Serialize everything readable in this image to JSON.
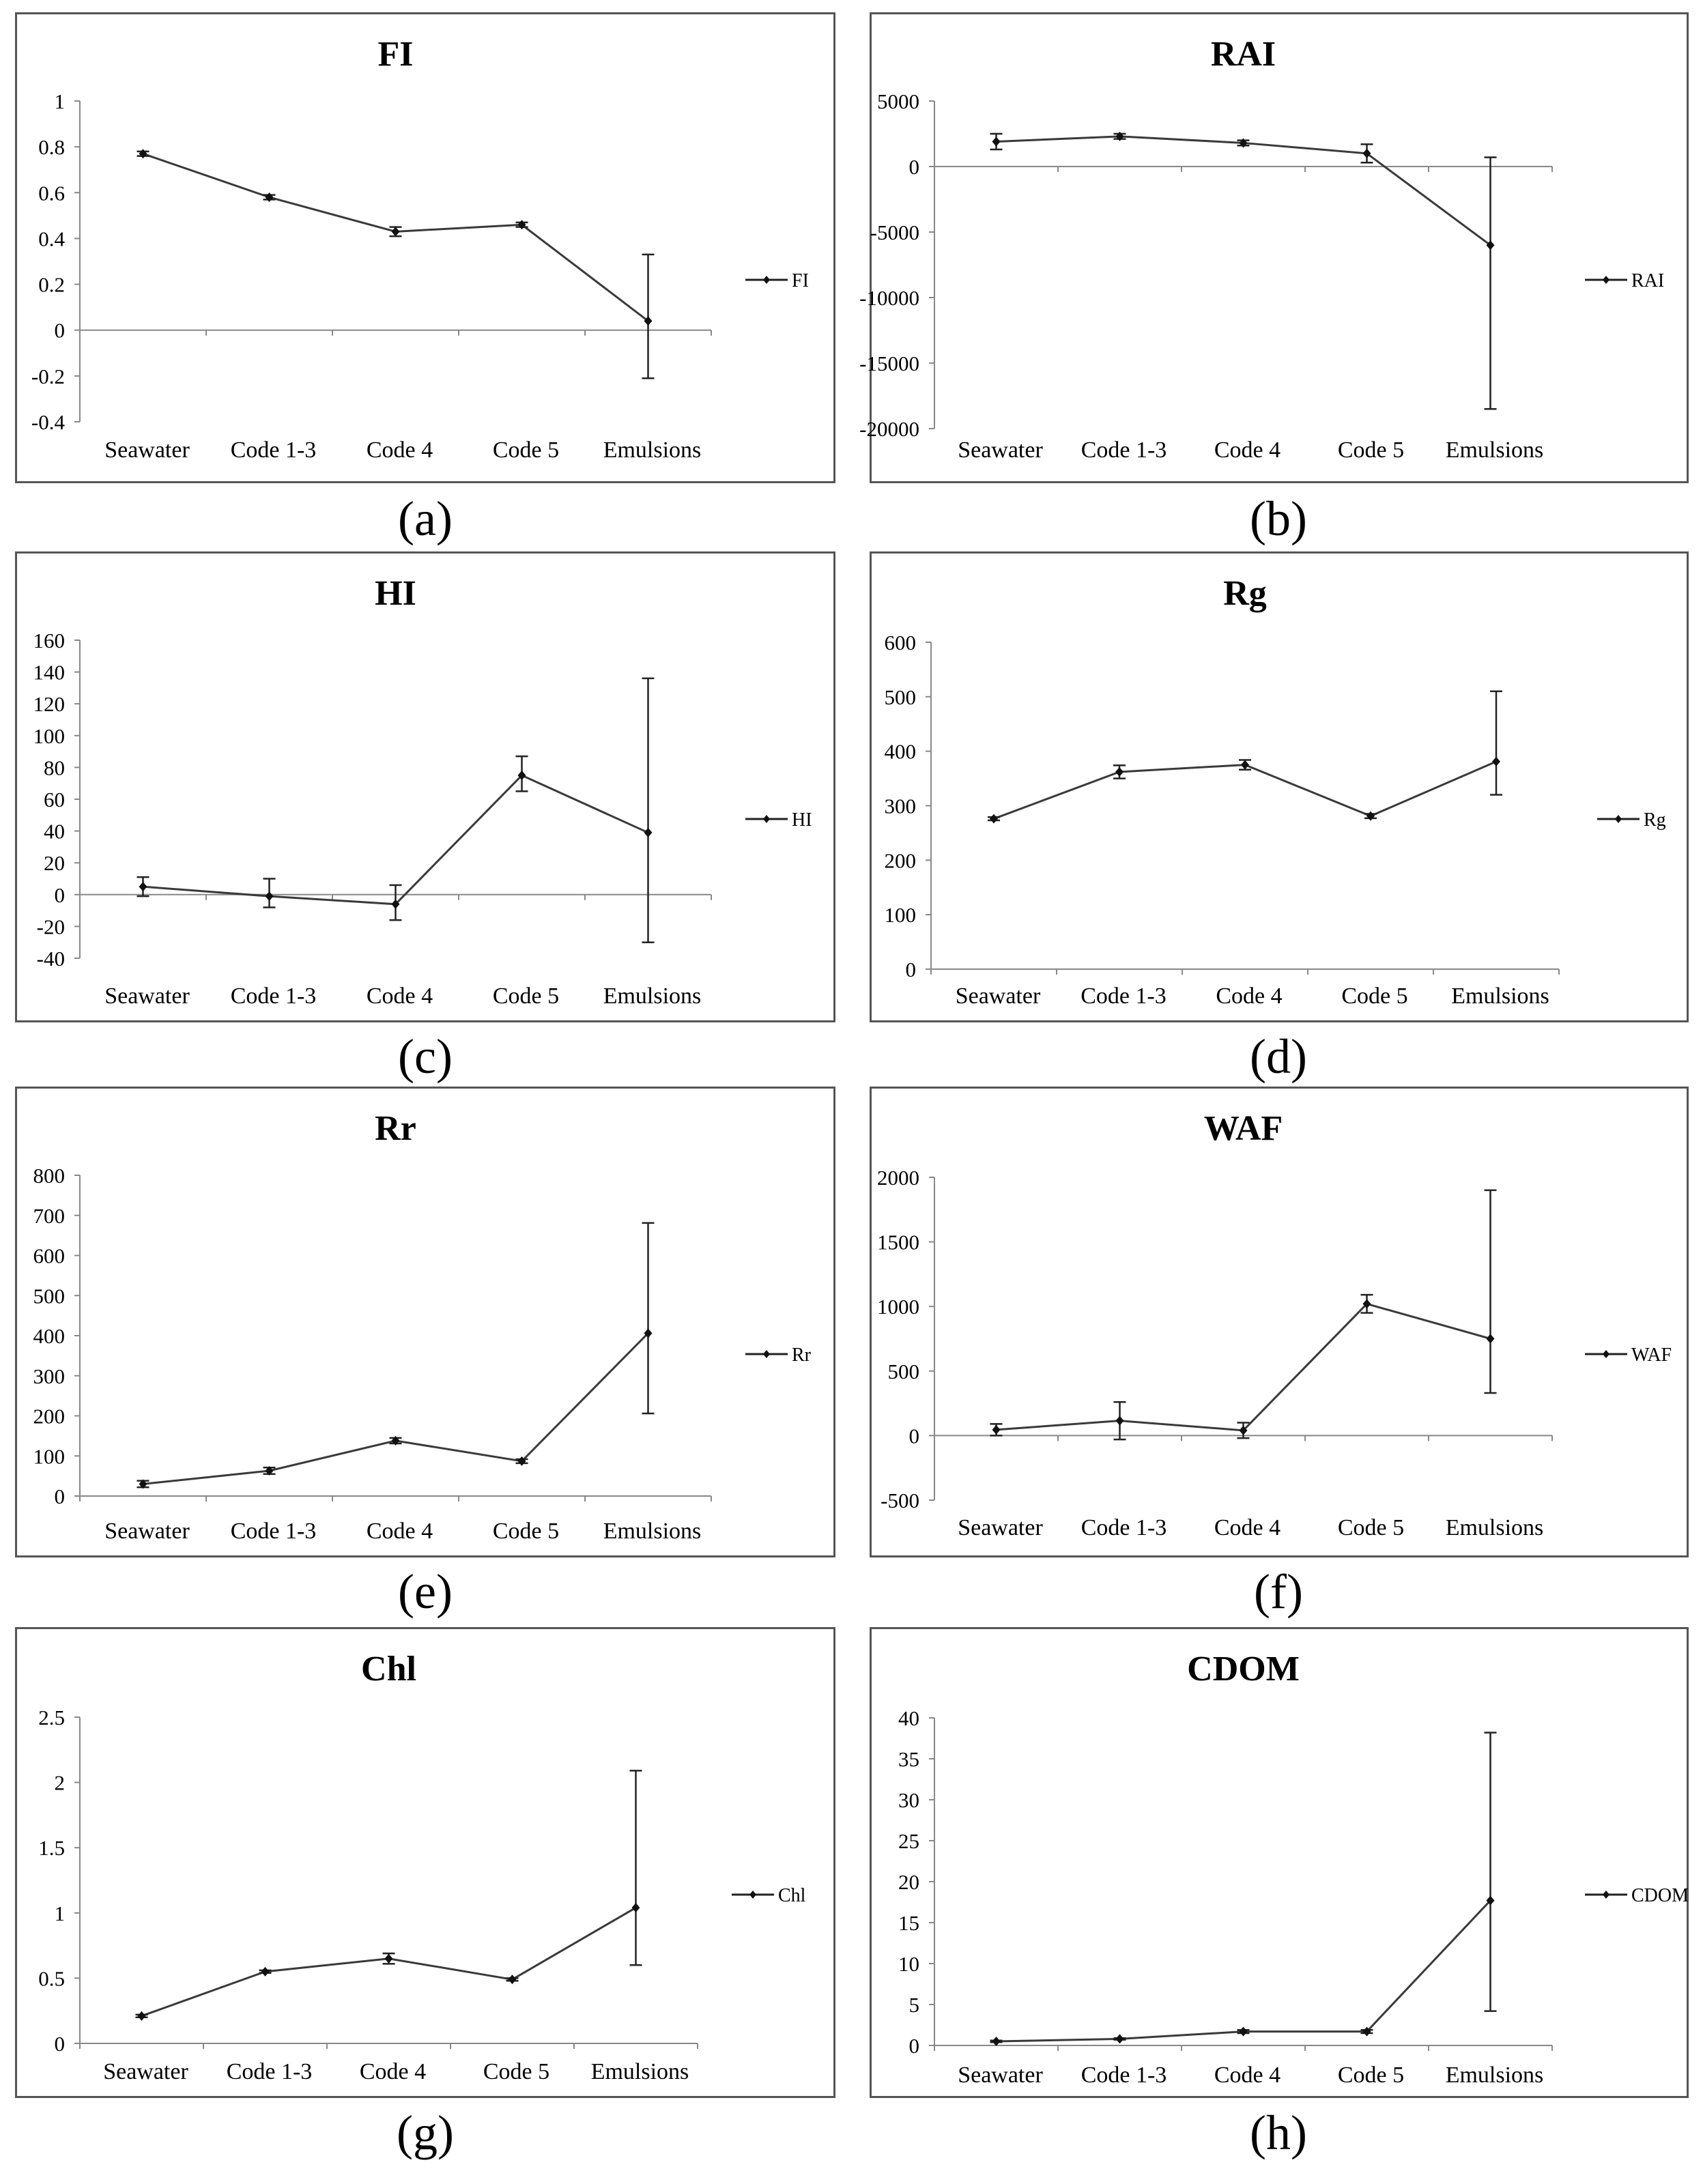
{
  "figure": {
    "captions": [
      "(a)",
      "(b)",
      "(c)",
      "(d)",
      "(e)",
      "(f)",
      "(g)",
      "(h)"
    ]
  },
  "chart_data": [
    {
      "type": "line",
      "title": "FI",
      "categories": [
        "Seawater",
        "Code 1-3",
        "Code 4",
        "Code 5",
        "Emulsions"
      ],
      "ylim": [
        -0.4,
        1
      ],
      "yticks": [
        -0.4,
        -0.2,
        0,
        0.2,
        0.4,
        0.6,
        0.8,
        1
      ],
      "ytick_labels": [
        "-0.4",
        "-0.2",
        "0",
        "0.2",
        "0.4",
        "0.6",
        "0.8",
        "1"
      ],
      "series": [
        {
          "name": "FI",
          "values": [
            0.77,
            0.58,
            0.43,
            0.46,
            0.04
          ],
          "err_low": [
            0.76,
            0.57,
            0.41,
            0.45,
            -0.21
          ],
          "err_high": [
            0.78,
            0.59,
            0.45,
            0.47,
            0.33
          ]
        }
      ],
      "legend": "right",
      "caption": "(a)"
    },
    {
      "type": "line",
      "title": "RAI",
      "categories": [
        "Seawater",
        "Code 1-3",
        "Code 4",
        "Code 5",
        "Emulsions"
      ],
      "ylim": [
        -20000,
        5000
      ],
      "yticks": [
        -20000,
        -15000,
        -10000,
        -5000,
        0,
        5000
      ],
      "ytick_labels": [
        "-20000",
        "-15000",
        "-10000",
        "-5000",
        "0",
        "5000"
      ],
      "series": [
        {
          "name": "RAI",
          "values": [
            1900,
            2300,
            1800,
            1000,
            -6000
          ],
          "err_low": [
            1300,
            2100,
            1600,
            300,
            -18500
          ],
          "err_high": [
            2500,
            2500,
            2000,
            1700,
            700
          ]
        }
      ],
      "legend": "right",
      "caption": "(b)"
    },
    {
      "type": "line",
      "title": "HI",
      "categories": [
        "Seawater",
        "Code 1-3",
        "Code 4",
        "Code 5",
        "Emulsions"
      ],
      "ylim": [
        -40,
        160
      ],
      "yticks": [
        -40,
        -20,
        0,
        20,
        40,
        60,
        80,
        100,
        120,
        140,
        160
      ],
      "ytick_labels": [
        "-40",
        "-20",
        "0",
        "20",
        "40",
        "60",
        "80",
        "100",
        "120",
        "140",
        "160"
      ],
      "series": [
        {
          "name": "HI",
          "values": [
            5,
            -1,
            -6,
            75,
            39
          ],
          "err_low": [
            -1,
            -8,
            -16,
            65,
            -30
          ],
          "err_high": [
            11,
            10,
            6,
            87,
            136
          ]
        }
      ],
      "legend": "right",
      "caption": "(c)"
    },
    {
      "type": "line",
      "title": "Rg",
      "categories": [
        "Seawater",
        "Code 1-3",
        "Code 4",
        "Code 5",
        "Emulsions"
      ],
      "ylim": [
        0,
        600
      ],
      "yticks": [
        0,
        100,
        200,
        300,
        400,
        500,
        600
      ],
      "ytick_labels": [
        "0",
        "100",
        "200",
        "300",
        "400",
        "500",
        "600"
      ],
      "series": [
        {
          "name": "Rg",
          "values": [
            276,
            362,
            375,
            281,
            381
          ],
          "err_low": [
            273,
            350,
            366,
            277,
            320
          ],
          "err_high": [
            279,
            374,
            384,
            285,
            510
          ]
        }
      ],
      "legend": "right",
      "caption": "(d)"
    },
    {
      "type": "line",
      "title": "Rr",
      "categories": [
        "Seawater",
        "Code 1-3",
        "Code 4",
        "Code 5",
        "Emulsions"
      ],
      "ylim": [
        0,
        800
      ],
      "yticks": [
        0,
        100,
        200,
        300,
        400,
        500,
        600,
        700,
        800
      ],
      "ytick_labels": [
        "0",
        "100",
        "200",
        "300",
        "400",
        "500",
        "600",
        "700",
        "800"
      ],
      "series": [
        {
          "name": "Rr",
          "values": [
            30,
            63,
            138,
            87,
            406
          ],
          "err_low": [
            22,
            55,
            131,
            82,
            206
          ],
          "err_high": [
            38,
            71,
            145,
            92,
            681
          ]
        }
      ],
      "legend": "right",
      "caption": "(e)"
    },
    {
      "type": "line",
      "title": "WAF",
      "categories": [
        "Seawater",
        "Code 1-3",
        "Code 4",
        "Code 5",
        "Emulsions"
      ],
      "ylim": [
        -500,
        2000
      ],
      "yticks": [
        -500,
        0,
        500,
        1000,
        1500,
        2000
      ],
      "ytick_labels": [
        "-500",
        "0",
        "500",
        "1000",
        "1500",
        "2000"
      ],
      "series": [
        {
          "name": "WAF",
          "values": [
            45,
            115,
            40,
            1020,
            750
          ],
          "err_low": [
            0,
            -30,
            -20,
            950,
            330
          ],
          "err_high": [
            90,
            260,
            100,
            1090,
            1900
          ]
        }
      ],
      "legend": "right",
      "caption": "(f)"
    },
    {
      "type": "line",
      "title": "Chl",
      "categories": [
        "Seawater",
        "Code 1-3",
        "Code 4",
        "Code 5",
        "Emulsions"
      ],
      "ylim": [
        0,
        2.5
      ],
      "yticks": [
        0,
        0.5,
        1,
        1.5,
        2,
        2.5
      ],
      "ytick_labels": [
        "0",
        "0.5",
        "1",
        "1.5",
        "2",
        "2.5"
      ],
      "series": [
        {
          "name": "Chl",
          "values": [
            0.21,
            0.55,
            0.65,
            0.49,
            1.04
          ],
          "err_low": [
            0.2,
            0.54,
            0.61,
            0.48,
            0.6
          ],
          "err_high": [
            0.22,
            0.56,
            0.69,
            0.5,
            2.09
          ]
        }
      ],
      "legend": "right",
      "caption": "(g)"
    },
    {
      "type": "line",
      "title": "CDOM",
      "categories": [
        "Seawater",
        "Code 1-3",
        "Code 4",
        "Code 5",
        "Emulsions"
      ],
      "ylim": [
        0,
        40
      ],
      "yticks": [
        0,
        5,
        10,
        15,
        20,
        25,
        30,
        35,
        40
      ],
      "ytick_labels": [
        "0",
        "5",
        "10",
        "15",
        "20",
        "25",
        "30",
        "35",
        "40"
      ],
      "series": [
        {
          "name": "CDOM",
          "values": [
            0.5,
            0.8,
            1.7,
            1.7,
            17.7
          ],
          "err_low": [
            0.4,
            0.7,
            1.5,
            1.5,
            4.2
          ],
          "err_high": [
            0.6,
            0.9,
            1.9,
            1.9,
            38.2
          ]
        }
      ],
      "legend": "right",
      "caption": "(h)"
    }
  ]
}
